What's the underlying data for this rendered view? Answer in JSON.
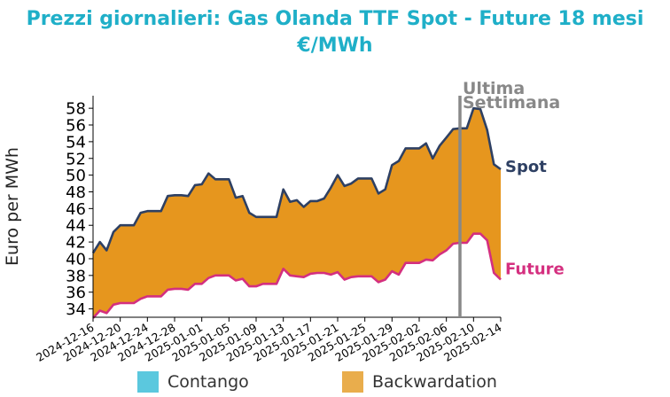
{
  "title_lines": [
    "Prezzi giornalieri: Gas Olanda TTF Spot - Future 18 mesi",
    "€/MWh"
  ],
  "chart_data": {
    "type": "area",
    "title": "Prezzi giornalieri: Gas Olanda TTF Spot - Future 18 mesi\n€/MWh",
    "ylabel": "Euro per MWh",
    "xlabel": "",
    "ylim": [
      33,
      59.5
    ],
    "yticks": [
      34,
      36,
      38,
      40,
      42,
      44,
      46,
      48,
      50,
      52,
      54,
      56,
      58
    ],
    "xtick_labels": [
      "2024-12-16",
      "2024-12-20",
      "2024-12-24",
      "2024-12-28",
      "2025-01-01",
      "2025-01-05",
      "2025-01-09",
      "2025-01-13",
      "2025-01-17",
      "2025-01-21",
      "2025-01-25",
      "2025-01-29",
      "2025-02-02",
      "2025-02-06",
      "2025-02-10",
      "2025-02-14"
    ],
    "start_date": "2024-12-16",
    "series": [
      {
        "name": "Spot",
        "color": "#2e4063",
        "values": [
          [
            0,
            40.7
          ],
          [
            1,
            42.0
          ],
          [
            2,
            41.0
          ],
          [
            3,
            43.2
          ],
          [
            4,
            44.0
          ],
          [
            5,
            44.0
          ],
          [
            6,
            44.0
          ],
          [
            7,
            45.5
          ],
          [
            8,
            45.7
          ],
          [
            9,
            45.7
          ],
          [
            10,
            45.7
          ],
          [
            11,
            47.5
          ],
          [
            12,
            47.6
          ],
          [
            13,
            47.6
          ],
          [
            14,
            47.5
          ],
          [
            15,
            48.8
          ],
          [
            16,
            48.9
          ],
          [
            17,
            50.2
          ],
          [
            18,
            49.5
          ],
          [
            19,
            49.5
          ],
          [
            20,
            49.5
          ],
          [
            21,
            47.3
          ],
          [
            22,
            47.5
          ],
          [
            23,
            45.5
          ],
          [
            24,
            45.0
          ],
          [
            25,
            45.0
          ],
          [
            26,
            45.0
          ],
          [
            27,
            45.0
          ],
          [
            28,
            48.3
          ],
          [
            29,
            46.8
          ],
          [
            30,
            47.0
          ],
          [
            31,
            46.2
          ],
          [
            32,
            46.9
          ],
          [
            33,
            46.9
          ],
          [
            34,
            47.2
          ],
          [
            35,
            48.5
          ],
          [
            36,
            50.0
          ],
          [
            37,
            48.7
          ],
          [
            38,
            49.0
          ],
          [
            39,
            49.6
          ],
          [
            40,
            49.6
          ],
          [
            41,
            49.6
          ],
          [
            42,
            47.8
          ],
          [
            43,
            48.3
          ],
          [
            44,
            51.2
          ],
          [
            45,
            51.7
          ],
          [
            46,
            53.2
          ],
          [
            47,
            53.2
          ],
          [
            48,
            53.2
          ],
          [
            49,
            53.8
          ],
          [
            50,
            52.0
          ],
          [
            51,
            53.5
          ],
          [
            52,
            54.5
          ],
          [
            53,
            55.5
          ],
          [
            54,
            55.6
          ],
          [
            55,
            55.6
          ],
          [
            56,
            58.0
          ],
          [
            57,
            57.9
          ],
          [
            58,
            55.4
          ],
          [
            59,
            51.3
          ],
          [
            60,
            50.7
          ]
        ]
      },
      {
        "name": "Future",
        "color": "#d42f7f",
        "values": [
          [
            0,
            32.9
          ],
          [
            1,
            33.8
          ],
          [
            2,
            33.5
          ],
          [
            3,
            34.5
          ],
          [
            4,
            34.7
          ],
          [
            5,
            34.7
          ],
          [
            6,
            34.7
          ],
          [
            7,
            35.2
          ],
          [
            8,
            35.5
          ],
          [
            9,
            35.5
          ],
          [
            10,
            35.5
          ],
          [
            11,
            36.3
          ],
          [
            12,
            36.4
          ],
          [
            13,
            36.4
          ],
          [
            14,
            36.3
          ],
          [
            15,
            37.0
          ],
          [
            16,
            37.0
          ],
          [
            17,
            37.7
          ],
          [
            18,
            38.0
          ],
          [
            19,
            38.0
          ],
          [
            20,
            38.0
          ],
          [
            21,
            37.4
          ],
          [
            22,
            37.6
          ],
          [
            23,
            36.7
          ],
          [
            24,
            36.7
          ],
          [
            25,
            37.0
          ],
          [
            26,
            37.0
          ],
          [
            27,
            37.0
          ],
          [
            28,
            38.8
          ],
          [
            29,
            38.0
          ],
          [
            30,
            37.9
          ],
          [
            31,
            37.8
          ],
          [
            32,
            38.2
          ],
          [
            33,
            38.3
          ],
          [
            34,
            38.3
          ],
          [
            35,
            38.1
          ],
          [
            36,
            38.4
          ],
          [
            37,
            37.5
          ],
          [
            38,
            37.8
          ],
          [
            39,
            37.9
          ],
          [
            40,
            37.9
          ],
          [
            41,
            37.9
          ],
          [
            42,
            37.2
          ],
          [
            43,
            37.5
          ],
          [
            44,
            38.5
          ],
          [
            45,
            38.1
          ],
          [
            46,
            39.5
          ],
          [
            47,
            39.5
          ],
          [
            48,
            39.5
          ],
          [
            49,
            39.9
          ],
          [
            50,
            39.8
          ],
          [
            51,
            40.5
          ],
          [
            52,
            41.0
          ],
          [
            53,
            41.8
          ],
          [
            54,
            41.9
          ],
          [
            55,
            41.9
          ],
          [
            56,
            43.0
          ],
          [
            57,
            43.0
          ],
          [
            58,
            42.2
          ],
          [
            59,
            38.3
          ],
          [
            60,
            37.5
          ]
        ]
      }
    ],
    "area_fill": {
      "name": "Backwardation",
      "color": "#e6961e"
    },
    "marker": {
      "x": 54.0,
      "label": "Ultima Settimana",
      "color": "#888888"
    },
    "legend": [
      {
        "label": "Contango",
        "color": "#5bc8de"
      },
      {
        "label": "Backwardation",
        "color": "#e9ad4c"
      }
    ],
    "legend_position": "bottom",
    "end_labels": [
      "Spot",
      "Future"
    ],
    "grid": false
  }
}
